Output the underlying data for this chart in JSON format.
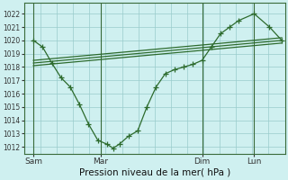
{
  "xlabel": "Pression niveau de la mer( hPa )",
  "bg_color": "#cff0f0",
  "grid_color": "#99cccc",
  "line_color": "#2d6b2d",
  "ylim": [
    1011.5,
    1022.8
  ],
  "yticks": [
    1012,
    1013,
    1014,
    1015,
    1016,
    1017,
    1018,
    1019,
    1020,
    1021,
    1022
  ],
  "xlim": [
    0,
    8.5
  ],
  "xtick_positions": [
    0.3,
    2.5,
    5.8,
    7.5
  ],
  "xtick_labels": [
    "Sam",
    "Mar",
    "Dim",
    "Lun"
  ],
  "vline_positions": [
    0.3,
    2.5,
    5.8,
    7.5
  ],
  "series1_x": [
    0.3,
    0.6,
    0.9,
    1.2,
    1.5,
    1.8,
    2.1,
    2.4,
    2.7,
    2.9,
    3.1,
    3.4,
    3.7,
    4.0,
    4.3,
    4.6,
    4.9,
    5.2,
    5.5,
    5.8,
    6.1,
    6.4,
    6.7,
    7.0,
    7.5,
    8.0,
    8.4
  ],
  "series1_y": [
    1020.0,
    1019.5,
    1018.3,
    1017.2,
    1016.5,
    1015.2,
    1013.7,
    1012.5,
    1012.2,
    1011.9,
    1012.2,
    1012.8,
    1013.2,
    1015.0,
    1016.5,
    1017.5,
    1017.8,
    1018.0,
    1018.2,
    1018.5,
    1019.5,
    1020.5,
    1021.0,
    1021.5,
    1022.0,
    1021.0,
    1020.0
  ],
  "trend1_x": [
    0.3,
    8.4
  ],
  "trend1_y": [
    1018.1,
    1019.8
  ],
  "trend2_x": [
    0.3,
    8.4
  ],
  "trend2_y": [
    1018.3,
    1020.0
  ],
  "trend3_x": [
    0.3,
    8.4
  ],
  "trend3_y": [
    1018.5,
    1020.2
  ],
  "n_xgrid": 17,
  "ytick_fontsize": 5.5,
  "xtick_fontsize": 6.5,
  "xlabel_fontsize": 7.5
}
